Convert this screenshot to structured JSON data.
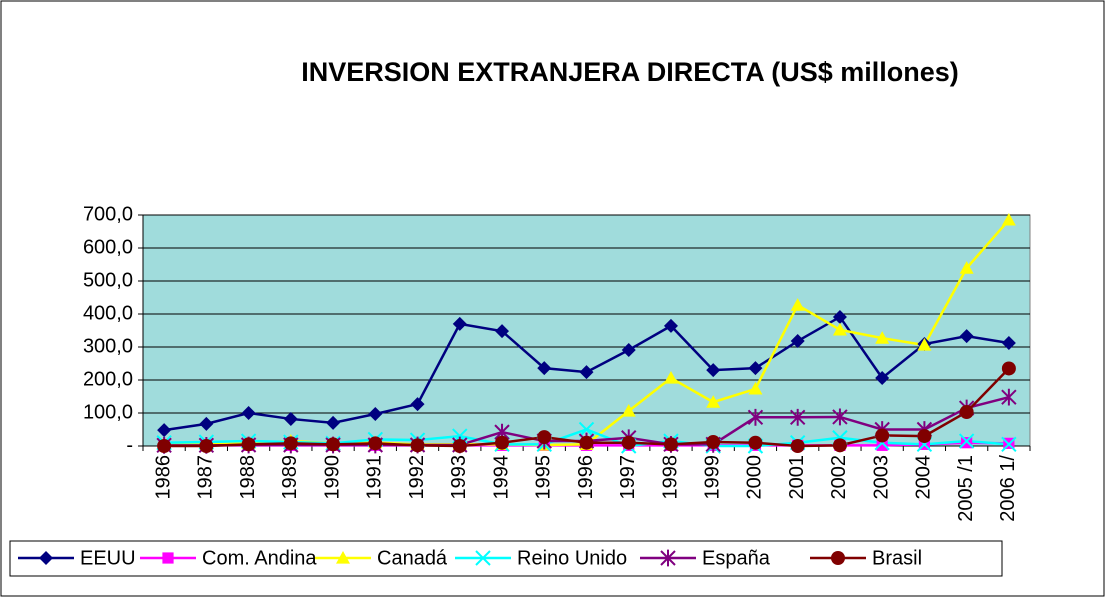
{
  "chart_data": {
    "type": "line",
    "title": "INVERSION EXTRANJERA DIRECTA (US$ millones)",
    "categories": [
      "1986",
      "1987",
      "1988",
      "1989",
      "1990",
      "1991",
      "1992",
      "1993",
      "1994",
      "1995",
      "1996",
      "1997",
      "1998",
      "1999",
      "2000",
      "2001",
      "2002",
      "2003",
      "2004",
      "2005 /1",
      "2006 1/"
    ],
    "ylim": [
      0,
      700
    ],
    "yticks": [
      {
        "value": 0,
        "label": "-"
      },
      {
        "value": 100,
        "label": "100,0"
      },
      {
        "value": 200,
        "label": "200,0"
      },
      {
        "value": 300,
        "label": "300,0"
      },
      {
        "value": 400,
        "label": "400,0"
      },
      {
        "value": 500,
        "label": "500,0"
      },
      {
        "value": 600,
        "label": "600,0"
      },
      {
        "value": 700,
        "label": "700,0"
      }
    ],
    "grid": true,
    "legend": "bottom",
    "series": [
      {
        "name": "EEUU",
        "color": "#000080",
        "marker": "diamond",
        "values": [
          48,
          67,
          100,
          82,
          70,
          97,
          127,
          370,
          348,
          236,
          224,
          291,
          364,
          230,
          236,
          318,
          391,
          206,
          309,
          333,
          312
        ]
      },
      {
        "name": "Com. Andina",
        "color": "#ff00ff",
        "marker": "square",
        "values": [
          2,
          2,
          2,
          2,
          2,
          2,
          2,
          2,
          2,
          2,
          2,
          2,
          2,
          2,
          2,
          2,
          2,
          2,
          5,
          10,
          8
        ]
      },
      {
        "name": "Canadá",
        "color": "#ffff00",
        "marker": "triangle",
        "values": [
          5,
          5,
          8,
          15,
          8,
          10,
          5,
          5,
          5,
          3,
          5,
          106,
          206,
          133,
          173,
          427,
          352,
          327,
          306,
          539,
          685
        ]
      },
      {
        "name": "Reino Unido",
        "color": "#00ffff",
        "marker": "x",
        "values": [
          10,
          12,
          15,
          12,
          8,
          20,
          18,
          30,
          5,
          5,
          50,
          0,
          15,
          0,
          0,
          10,
          25,
          10,
          5,
          15,
          5
        ]
      },
      {
        "name": "España",
        "color": "#800080",
        "marker": "star",
        "values": [
          2,
          2,
          3,
          3,
          3,
          3,
          3,
          3,
          42,
          15,
          15,
          25,
          5,
          5,
          87,
          87,
          88,
          50,
          50,
          115,
          148
        ]
      },
      {
        "name": "Brasil",
        "color": "#800000",
        "marker": "circle",
        "values": [
          0,
          0,
          5,
          8,
          5,
          8,
          2,
          0,
          10,
          27,
          10,
          10,
          5,
          12,
          10,
          0,
          2,
          32,
          30,
          103,
          235
        ]
      }
    ]
  }
}
